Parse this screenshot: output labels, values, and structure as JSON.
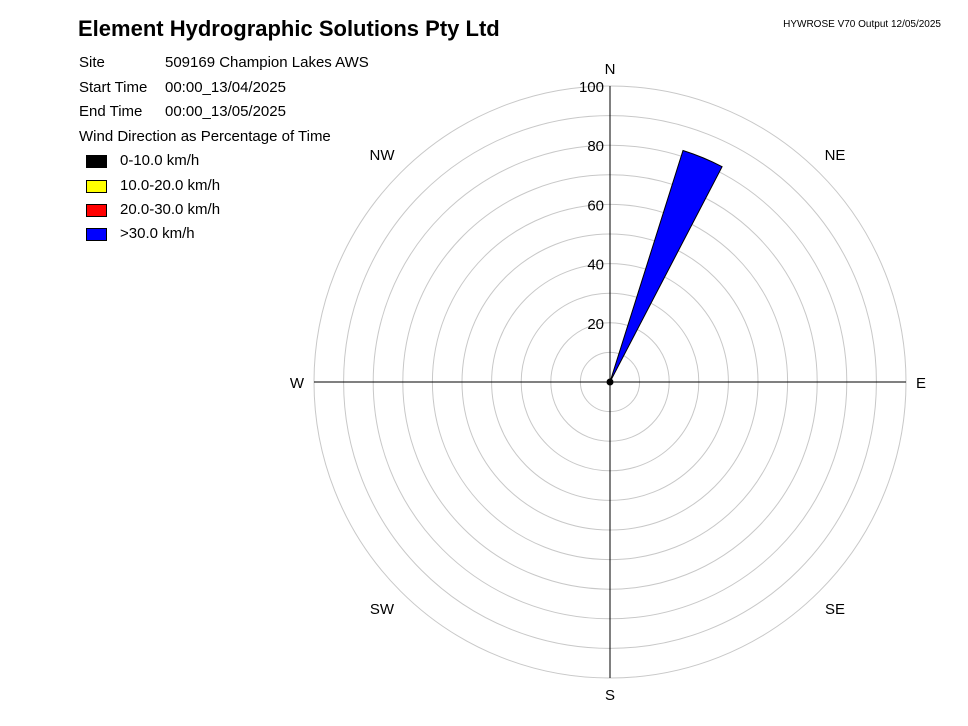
{
  "header": {
    "title": "Element Hydrographic Solutions Pty Ltd",
    "version": "HYWROSE V70  Output 12/05/2025"
  },
  "info": {
    "site_label": "Site",
    "site_value": "509169  Champion Lakes AWS",
    "start_label": "Start Time",
    "start_value": "00:00_13/04/2025",
    "end_label": "End Time",
    "end_value": "00:00_13/05/2025"
  },
  "legend": {
    "title": "Wind Direction as Percentage of Time",
    "items": [
      {
        "label": "0-10.0 km/h",
        "color": "#000000"
      },
      {
        "label": "10.0-20.0 km/h",
        "color": "#ffff00"
      },
      {
        "label": "20.0-30.0 km/h",
        "color": "#ff0000"
      },
      {
        "label": ">30.0 km/h",
        "color": "#0000ff"
      }
    ]
  },
  "chart_data": {
    "type": "wind_rose",
    "radial_ticks": [
      20,
      40,
      60,
      80,
      100
    ],
    "radial_max": 100,
    "ring_step": 10,
    "directions": [
      "N",
      "NE",
      "E",
      "SE",
      "S",
      "SW",
      "W",
      "NW"
    ],
    "sectors": [
      {
        "center_deg": 22.5,
        "width_deg": 10,
        "bands": [
          {
            "speed": "0-10.0 km/h",
            "value": 0,
            "color": "#000000"
          },
          {
            "speed": "10.0-20.0 km/h",
            "value": 0,
            "color": "#ffff00"
          },
          {
            "speed": "20.0-30.0 km/h",
            "value": 1,
            "color": "#ff0000"
          },
          {
            "speed": ">30.0 km/h",
            "value": 81,
            "color": "#0000ff"
          }
        ]
      }
    ],
    "calm_dot": true
  }
}
